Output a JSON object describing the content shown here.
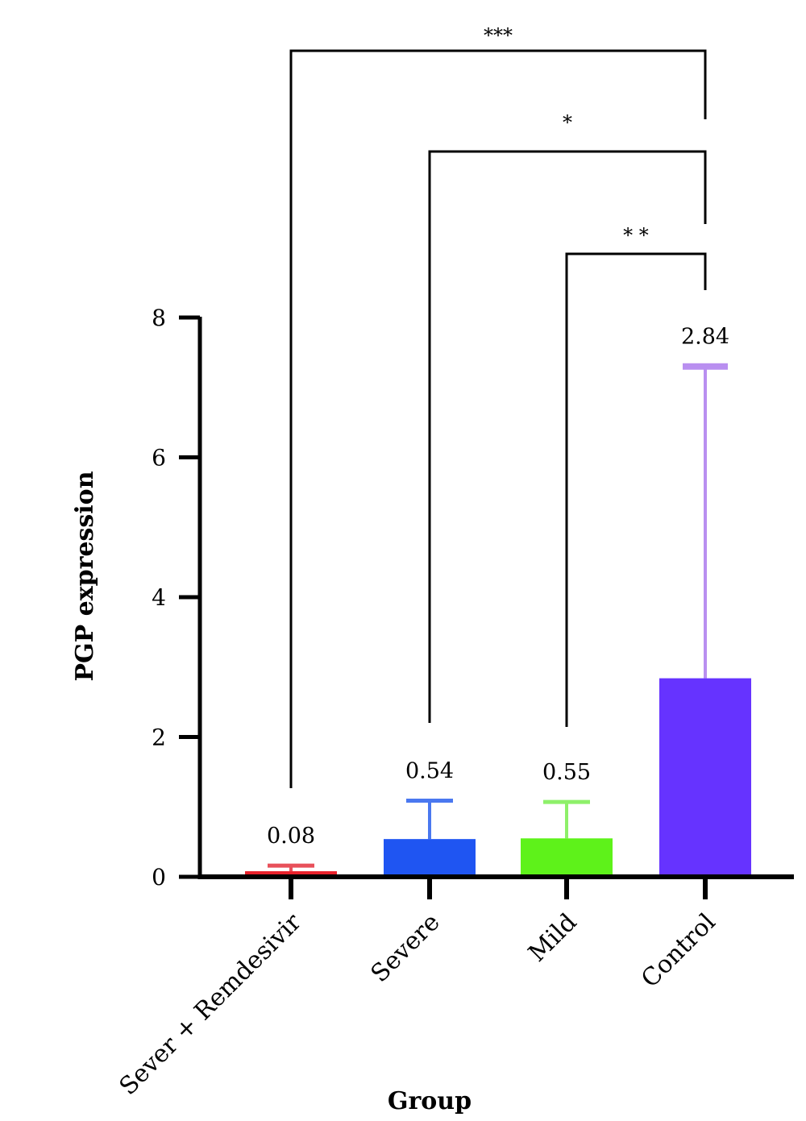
{
  "chart_data": {
    "type": "bar",
    "categories": [
      "Sever + Remdesivir",
      "Severe",
      "Mild",
      "Control"
    ],
    "values": [
      0.08,
      0.54,
      0.55,
      2.84
    ],
    "value_labels": [
      "0.08",
      "0.54",
      "0.55",
      "2.84"
    ],
    "error_upper": [
      0.16,
      1.09,
      1.07,
      7.3
    ],
    "colors": [
      "#e8202a",
      "#1f55f2",
      "#5ef21a",
      "#6633ff"
    ],
    "error_colors": [
      "#e8505a",
      "#4a78f0",
      "#8ef06a",
      "#b98ff0"
    ],
    "xlabel": "Group",
    "ylabel": "PGP expression",
    "ylim": [
      0,
      8
    ],
    "yticks": [
      0,
      2,
      4,
      6,
      8
    ],
    "grid": false,
    "significance": [
      {
        "from": "Sever + Remdesivir",
        "to": "Control",
        "label": "***"
      },
      {
        "from": "Severe",
        "to": "Control",
        "label": "*"
      },
      {
        "from": "Mild",
        "to": "Control",
        "label": "* *"
      }
    ]
  }
}
